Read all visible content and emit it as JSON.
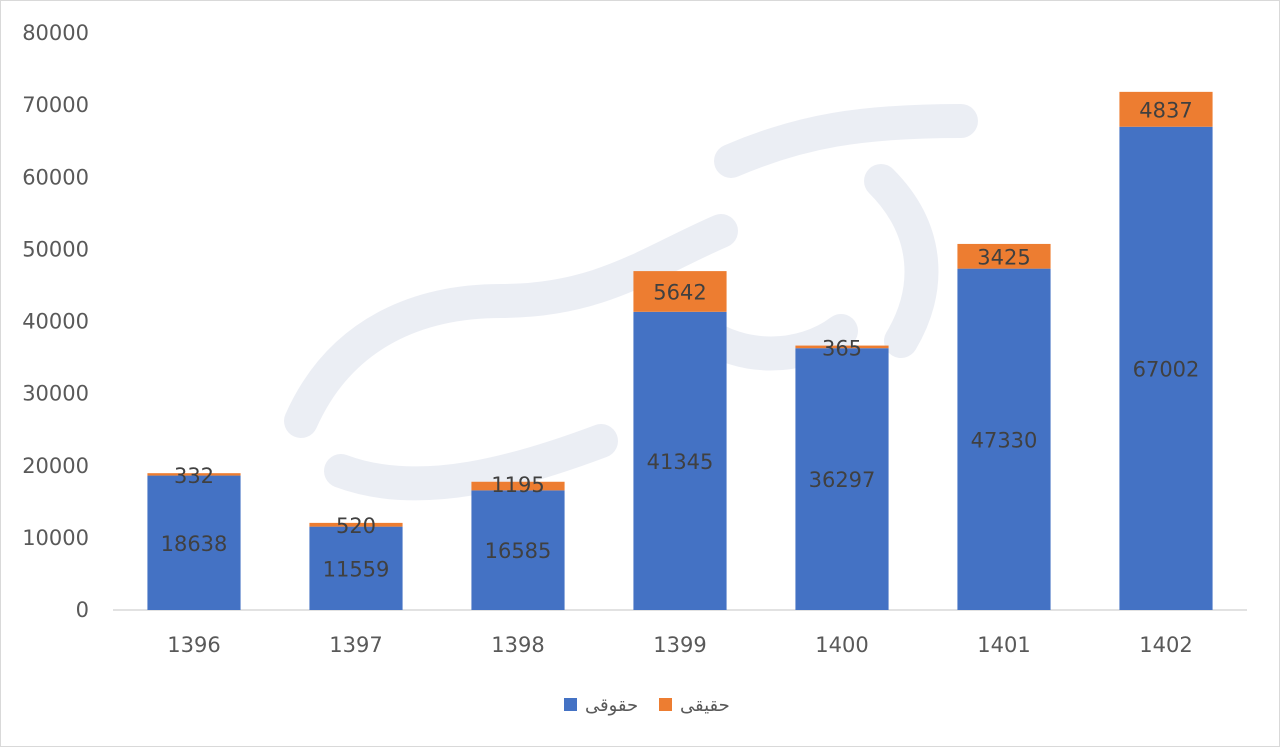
{
  "chart_data": {
    "type": "bar",
    "stacked": true,
    "categories": [
      "1396",
      "1397",
      "1398",
      "1399",
      "1400",
      "1401",
      "1402"
    ],
    "series": [
      {
        "name": "حقوقی",
        "color": "#4472C4",
        "values": [
          18638,
          11559,
          16585,
          41345,
          36297,
          47330,
          67002
        ]
      },
      {
        "name": "حقیقی",
        "color": "#ED7D31",
        "values": [
          332,
          520,
          1195,
          5642,
          365,
          3425,
          4837
        ]
      }
    ],
    "ylim": [
      0,
      80000
    ],
    "yticks": [
      0,
      10000,
      20000,
      30000,
      40000,
      50000,
      60000,
      70000,
      80000
    ],
    "grid": false,
    "legend_position": "bottom"
  }
}
